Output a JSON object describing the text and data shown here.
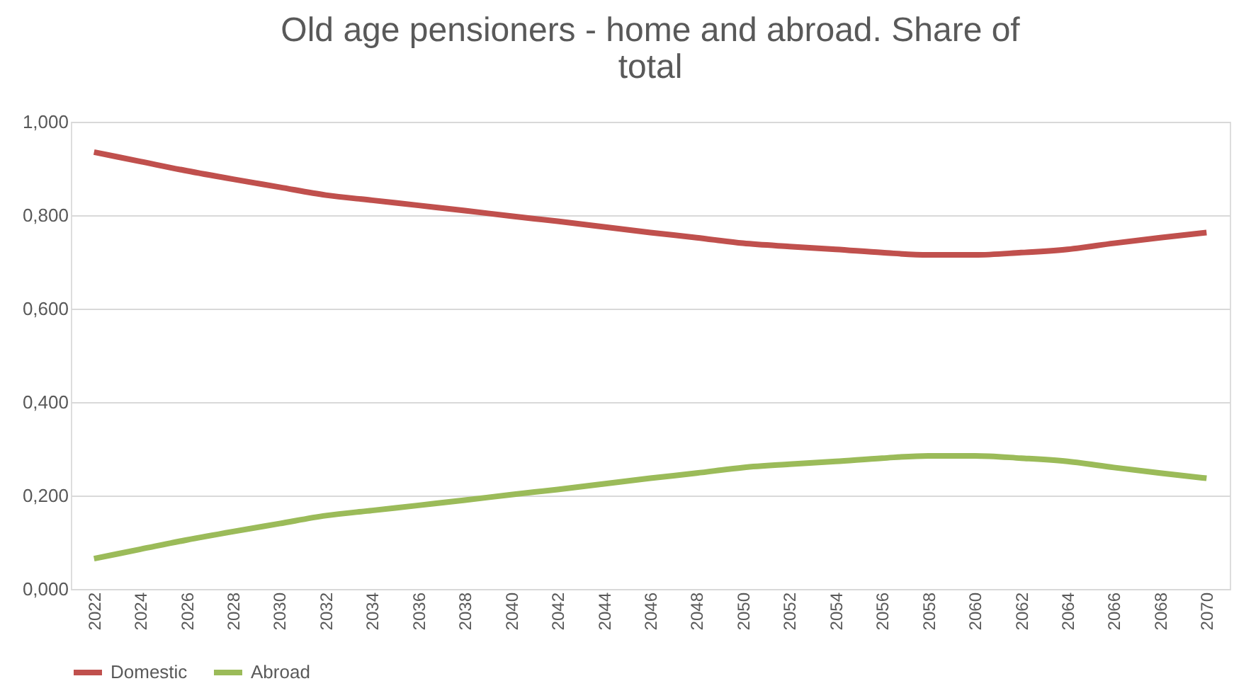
{
  "chart_data": {
    "type": "line",
    "title": "Old age pensioners - home and abroad. Share of total",
    "categories": [
      "2022",
      "2024",
      "2026",
      "2028",
      "2030",
      "2032",
      "2034",
      "2036",
      "2038",
      "2040",
      "2042",
      "2044",
      "2046",
      "2048",
      "2050",
      "2052",
      "2054",
      "2056",
      "2058",
      "2060",
      "2062",
      "2064",
      "2066",
      "2068",
      "2070"
    ],
    "series": [
      {
        "name": "Domestic",
        "color": "#c0504d",
        "values": [
          0.935,
          0.915,
          0.895,
          0.877,
          0.86,
          0.843,
          0.832,
          0.821,
          0.81,
          0.798,
          0.787,
          0.775,
          0.763,
          0.752,
          0.74,
          0.733,
          0.727,
          0.72,
          0.715,
          0.715,
          0.72,
          0.727,
          0.74,
          0.752,
          0.763
        ]
      },
      {
        "name": "Abroad",
        "color": "#9bbb59",
        "values": [
          0.065,
          0.085,
          0.105,
          0.123,
          0.14,
          0.157,
          0.168,
          0.179,
          0.19,
          0.202,
          0.213,
          0.225,
          0.237,
          0.248,
          0.26,
          0.267,
          0.273,
          0.28,
          0.285,
          0.285,
          0.28,
          0.273,
          0.26,
          0.248,
          0.237
        ]
      }
    ],
    "ylim": [
      0,
      1
    ],
    "yticks": [
      {
        "value": 0,
        "label": "0,000"
      },
      {
        "value": 0.2,
        "label": "0,200"
      },
      {
        "value": 0.4,
        "label": "0,400"
      },
      {
        "value": 0.6,
        "label": "0,600"
      },
      {
        "value": 0.8,
        "label": "0,800"
      },
      {
        "value": 1,
        "label": "1,000"
      }
    ],
    "grid": "y",
    "legend": "bottom",
    "marker": "none",
    "line_style": "solid"
  }
}
